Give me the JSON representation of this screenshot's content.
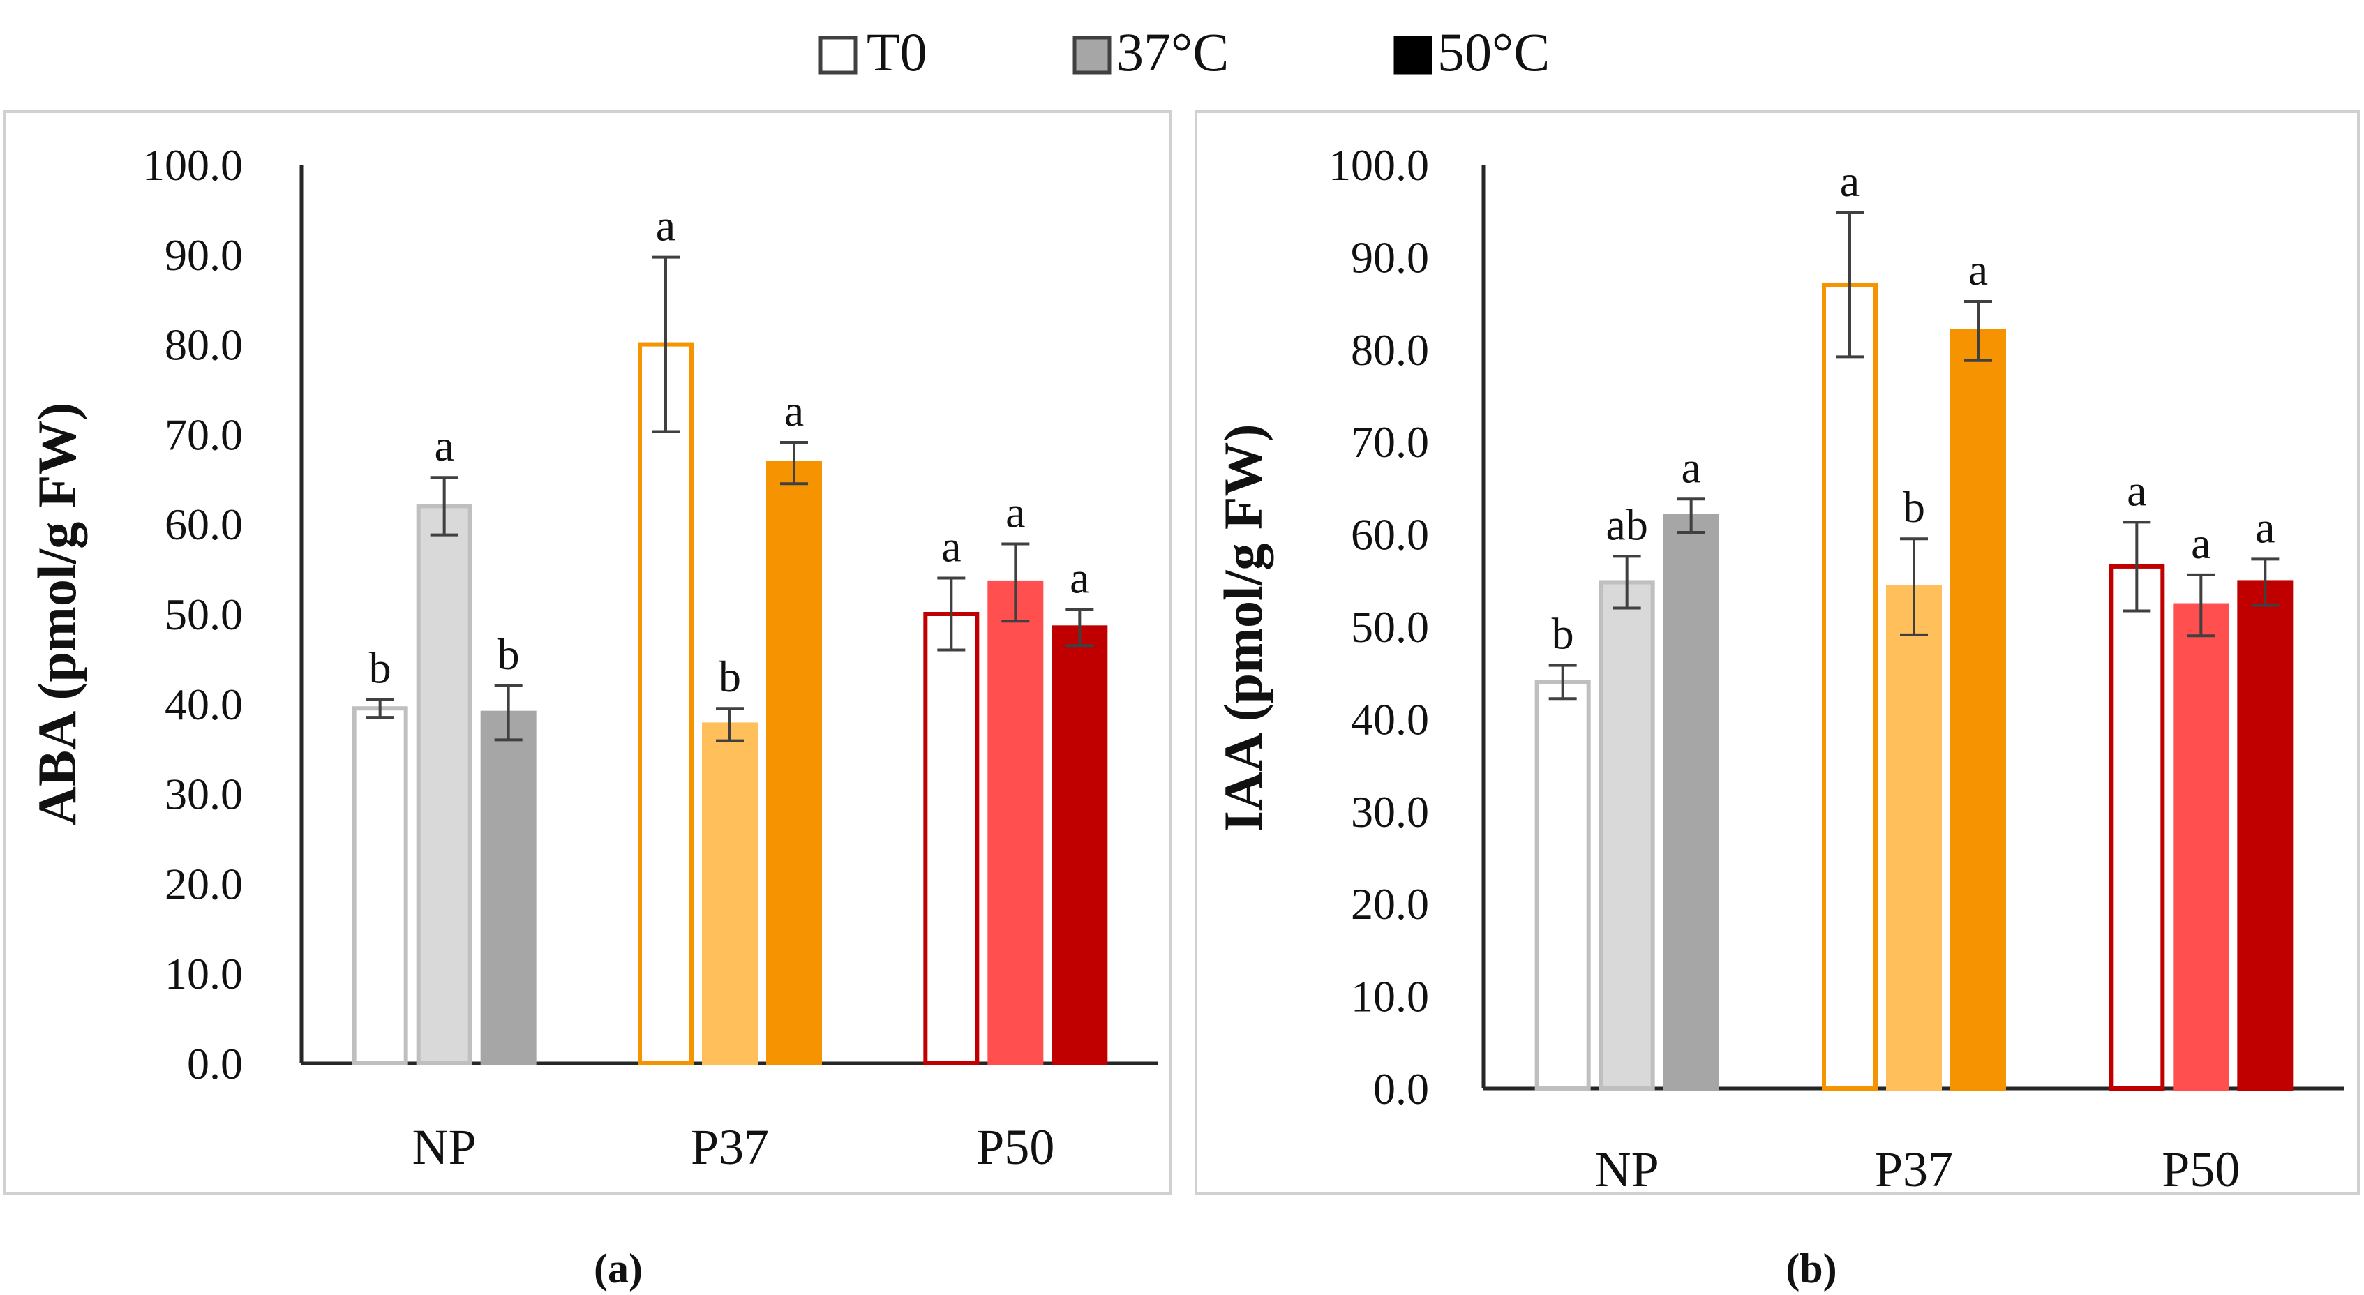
{
  "legend": [
    {
      "label": "T0",
      "fill": "#ffffff",
      "stroke": "#404040"
    },
    {
      "label": "37°C",
      "fill": "#a6a6a6",
      "stroke": "#404040"
    },
    {
      "label": "50°C",
      "fill": "#000000",
      "stroke": "#000000"
    }
  ],
  "colors": {
    "NP": {
      "fills": [
        "#ffffff",
        "#d9d9d9",
        "#a6a6a6"
      ],
      "outlines": [
        "#bfbfbf",
        "#bfbfbf",
        "#a6a6a6"
      ]
    },
    "P37": {
      "fills": [
        "#ffffff",
        "#ffbf5a",
        "#f59400"
      ],
      "outlines": [
        "#f59400",
        "#ffbf5a",
        "#f59400"
      ]
    },
    "P50": {
      "fills": [
        "#ffffff",
        "#ff4f4f",
        "#c00000"
      ],
      "outlines": [
        "#c00000",
        "#ff4f4f",
        "#c00000"
      ]
    },
    "error_bar": "#404040",
    "axis": "#262626",
    "panel_border": "#d0d0d0"
  },
  "chart_data": [
    {
      "type": "bar",
      "panel_label": "(a)",
      "ylabel": "ABA (pmol/g FW)",
      "ylim": [
        0,
        100
      ],
      "yticks": [
        "0.0",
        "10.0",
        "20.0",
        "30.0",
        "40.0",
        "50.0",
        "60.0",
        "70.0",
        "80.0",
        "90.0",
        "100.0"
      ],
      "categories": [
        "NP",
        "P37",
        "P50"
      ],
      "series": [
        {
          "values": [
            39.5,
            80.0,
            50.0
          ],
          "errors": [
            1.0,
            9.7,
            4.0
          ],
          "letters": [
            "b",
            "a",
            "a"
          ]
        },
        {
          "values": [
            62.0,
            37.7,
            53.5
          ],
          "errors": [
            3.2,
            1.8,
            4.3
          ],
          "letters": [
            "a",
            "b",
            "a"
          ]
        },
        {
          "values": [
            39.0,
            66.8,
            48.5
          ],
          "errors": [
            3.0,
            2.3,
            2.0
          ],
          "letters": [
            "b",
            "a",
            "a"
          ]
        }
      ]
    },
    {
      "type": "bar",
      "panel_label": "(b)",
      "ylabel": "IAA (pmol/g FW)",
      "ylim": [
        0,
        100
      ],
      "yticks": [
        "0.0",
        "10.0",
        "20.0",
        "30.0",
        "40.0",
        "50.0",
        "60.0",
        "70.0",
        "80.0",
        "90.0",
        "100.0"
      ],
      "categories": [
        "NP",
        "P37",
        "P50"
      ],
      "series": [
        {
          "values": [
            44.0,
            87.0,
            56.5
          ],
          "errors": [
            1.8,
            7.8,
            4.8
          ],
          "letters": [
            "b",
            "a",
            "a"
          ]
        },
        {
          "values": [
            54.8,
            54.3,
            52.3
          ],
          "errors": [
            2.8,
            5.2,
            3.3
          ],
          "letters": [
            "ab",
            "b",
            "a"
          ]
        },
        {
          "values": [
            62.0,
            82.0,
            54.8
          ],
          "errors": [
            1.8,
            3.2,
            2.5
          ],
          "letters": [
            "a",
            "a",
            "a"
          ]
        }
      ]
    }
  ]
}
